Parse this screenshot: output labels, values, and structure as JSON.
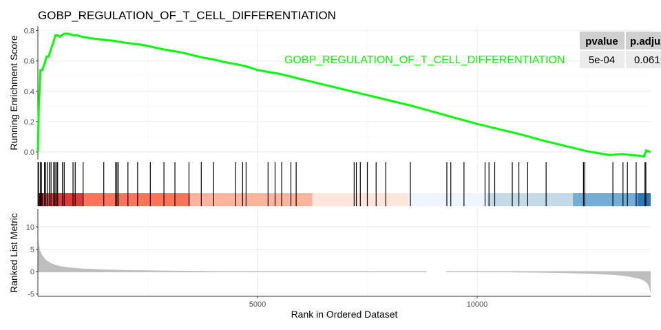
{
  "chart_data": {
    "type": "line",
    "title": "GOBP_REGULATION_OF_T_CELL_DIFFERENTIATION",
    "gene_set_label": "GOBP_REGULATION_OF_T_CELL_DIFFERENTIATION",
    "xlabel": "Rank in Ordered Dataset",
    "xlim": [
      0,
      13950
    ],
    "x_ticks": [
      5000,
      10000
    ],
    "colors": {
      "curve": "#00ff00",
      "hits": "#000000",
      "metric_fill": "#bebebe",
      "grid": "#ebebeb"
    },
    "es_panel": {
      "ylabel": "Running Enrichment Score",
      "ylim": [
        -0.05,
        0.83
      ],
      "y_ticks": [
        0.0,
        0.2,
        0.4,
        0.6,
        0.8
      ],
      "y_tick_labels": [
        "0.0",
        "0.2",
        "0.4",
        "0.6",
        "0.8"
      ],
      "series": [
        {
          "x": [
            0,
            20,
            60,
            100,
            150,
            200,
            250,
            300,
            350,
            400,
            450,
            500,
            600,
            700,
            800,
            900,
            1000,
            1200,
            1500,
            1800,
            2000,
            2300,
            2500,
            2800,
            3000,
            3300,
            3500,
            3800,
            4000,
            4300,
            4500,
            4800,
            5000,
            5500,
            6000,
            6500,
            7000,
            7500,
            8000,
            8500,
            9000,
            9500,
            10000,
            10500,
            11000,
            11500,
            12000,
            12500,
            13000,
            13300,
            13500,
            13700,
            13800,
            13850,
            13900,
            13950
          ],
          "y": [
            0.0,
            0.29,
            0.54,
            0.54,
            0.58,
            0.63,
            0.63,
            0.68,
            0.72,
            0.77,
            0.77,
            0.76,
            0.78,
            0.78,
            0.77,
            0.77,
            0.76,
            0.75,
            0.74,
            0.73,
            0.72,
            0.71,
            0.7,
            0.68,
            0.67,
            0.655,
            0.64,
            0.62,
            0.61,
            0.59,
            0.58,
            0.56,
            0.54,
            0.515,
            0.48,
            0.445,
            0.41,
            0.375,
            0.34,
            0.305,
            0.265,
            0.225,
            0.185,
            0.15,
            0.115,
            0.075,
            0.04,
            0.005,
            -0.02,
            -0.015,
            -0.02,
            -0.025,
            -0.03,
            0.01,
            0.005,
            0.0
          ]
        }
      ]
    },
    "hits_panel": {
      "hit_positions": [
        20,
        60,
        80,
        150,
        180,
        220,
        260,
        300,
        360,
        390,
        420,
        450,
        560,
        600,
        800,
        850,
        1030,
        1500,
        1770,
        1800,
        1830,
        2050,
        2270,
        2560,
        2870,
        3120,
        3440,
        3720,
        4000,
        4500,
        4660,
        4740,
        5240,
        5400,
        5550,
        5760,
        5880,
        7200,
        7250,
        7340,
        7500,
        7700,
        7920,
        8480,
        9310,
        9400,
        9700,
        10180,
        10270,
        10400,
        10800,
        10950,
        11150,
        11570,
        12420,
        12450,
        13090,
        13320,
        13420,
        13620,
        13820,
        13840
      ],
      "color_bands": [
        {
          "from": 0,
          "to": 120,
          "color": "#67000d"
        },
        {
          "from": 120,
          "to": 1020,
          "color": "#dc3b39"
        },
        {
          "from": 1020,
          "to": 3470,
          "color": "#fb7359"
        },
        {
          "from": 3470,
          "to": 6250,
          "color": "#fcb49c"
        },
        {
          "from": 6250,
          "to": 8430,
          "color": "#fee5db"
        },
        {
          "from": 8430,
          "to": 10230,
          "color": "#eff5fd"
        },
        {
          "from": 10230,
          "to": 12180,
          "color": "#c3dbe9"
        },
        {
          "from": 12180,
          "to": 13650,
          "color": "#72add5"
        },
        {
          "from": 13650,
          "to": 13950,
          "color": "#2c77b6"
        }
      ]
    },
    "metric_panel": {
      "ylabel": "Ranked List Metric",
      "ylim": [
        -5.5,
        14
      ],
      "y_ticks": [
        -5,
        0,
        5,
        10
      ],
      "y_tick_labels": [
        "-5",
        "0",
        "5",
        "10"
      ],
      "x": [
        0,
        20,
        50,
        100,
        150,
        200,
        300,
        400,
        500,
        700,
        1000,
        1500,
        2000,
        3000,
        4000,
        5000,
        6000,
        7000,
        8000,
        8800,
        9000,
        9200,
        10000,
        11000,
        12000,
        12500,
        13000,
        13300,
        13500,
        13700,
        13800,
        13850,
        13900,
        13930,
        13950
      ],
      "y": [
        7.8,
        6.0,
        4.7,
        3.7,
        3.0,
        2.5,
        1.9,
        1.5,
        1.25,
        0.95,
        0.7,
        0.5,
        0.38,
        0.22,
        0.12,
        0.06,
        0.02,
        0.0,
        0.0,
        0.0,
        0.0,
        0.0,
        -0.05,
        -0.15,
        -0.3,
        -0.45,
        -0.65,
        -0.9,
        -1.2,
        -1.6,
        -2.0,
        -2.4,
        -3.0,
        -4.2,
        -4.8
      ],
      "gap": [
        8850,
        9300
      ]
    }
  },
  "table": {
    "headers": [
      "pvalue",
      "p.adjust"
    ],
    "values": [
      "5e-04",
      "0.061"
    ]
  }
}
